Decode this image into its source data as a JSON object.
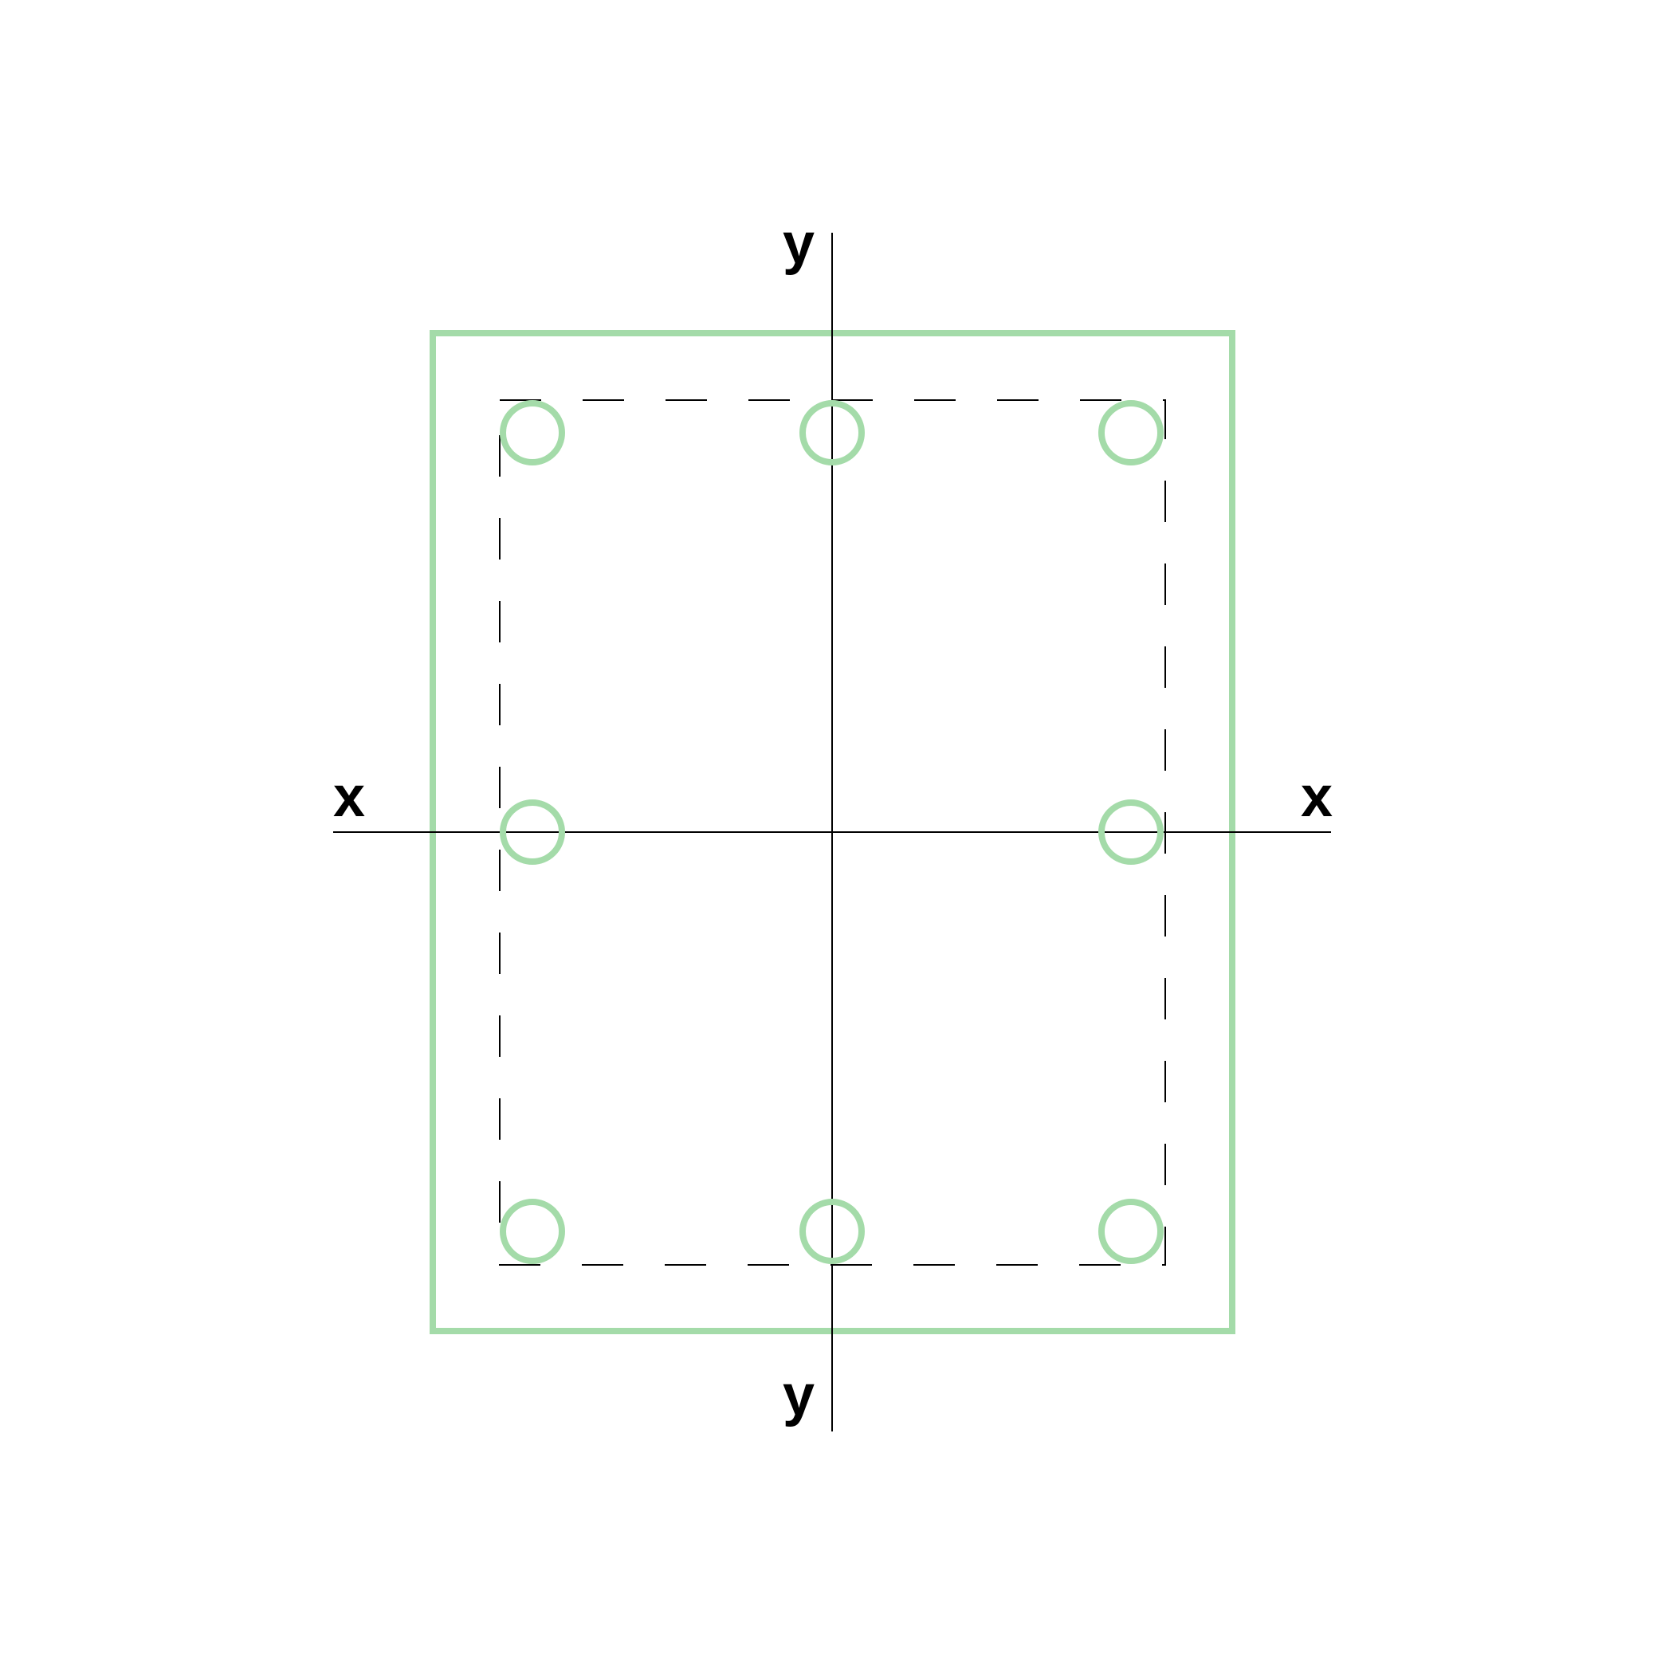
{
  "diagram": {
    "title": "",
    "axes": {
      "x_label_left": "x",
      "x_label_right": "x",
      "y_label_top": "y",
      "y_label_bottom": "y"
    },
    "section": {
      "outline_color": "#a4dba9",
      "reinforcement_color": "#a4dba9",
      "tie_line_color": "#000000",
      "axis_color": "#000000",
      "bar_count": 8,
      "bars": [
        {
          "name": "bar-top-left"
        },
        {
          "name": "bar-top-center"
        },
        {
          "name": "bar-top-right"
        },
        {
          "name": "bar-middle-left"
        },
        {
          "name": "bar-middle-right"
        },
        {
          "name": "bar-bottom-left"
        },
        {
          "name": "bar-bottom-center"
        },
        {
          "name": "bar-bottom-right"
        }
      ]
    }
  }
}
